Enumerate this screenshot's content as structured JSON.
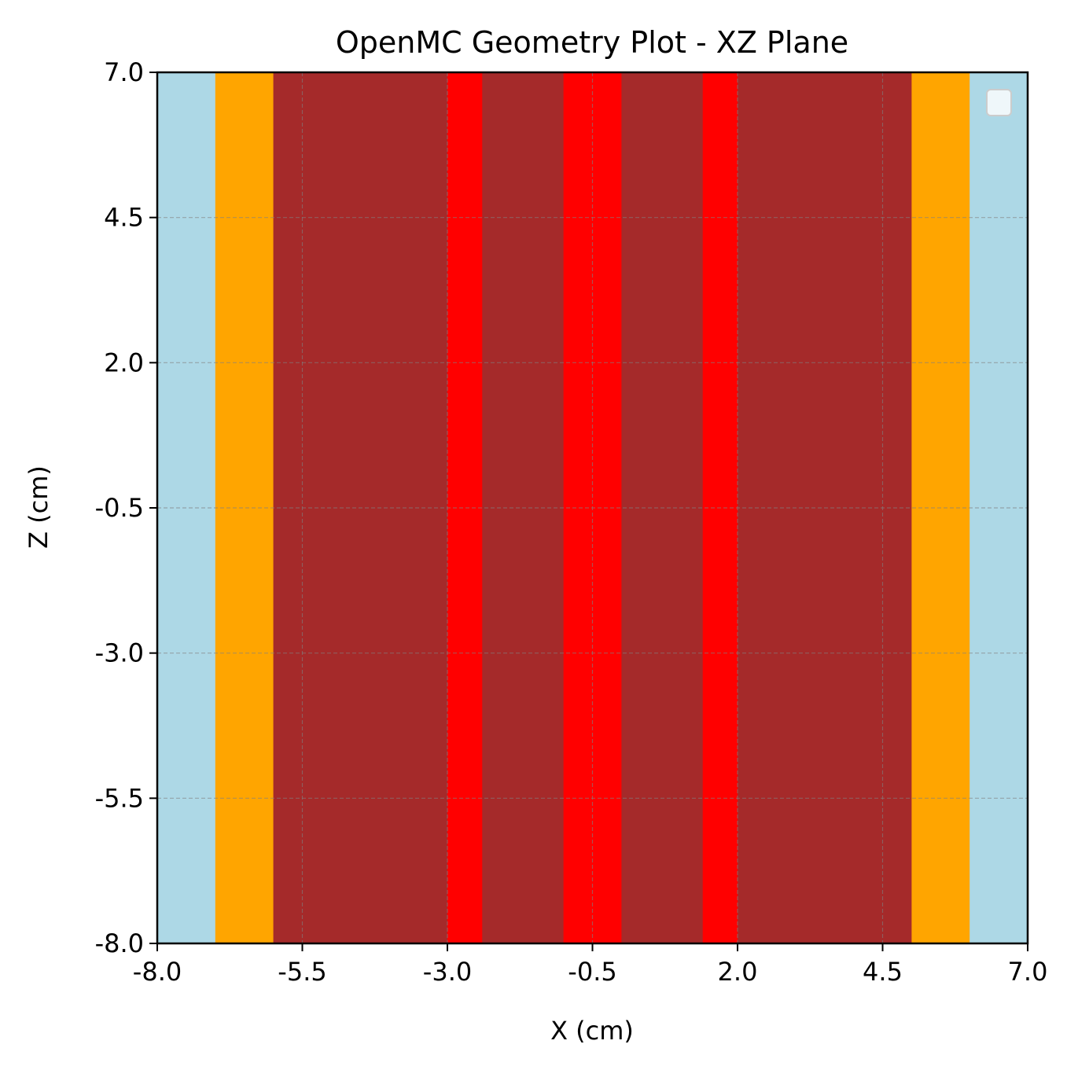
{
  "chart_data": {
    "type": "heatmap",
    "title": "OpenMC Geometry Plot - XZ Plane",
    "xlabel": "X (cm)",
    "ylabel": "Z (cm)",
    "xlim": [
      -8.0,
      7.0
    ],
    "ylim": [
      -8.0,
      7.0
    ],
    "xticks": [
      -8.0,
      -5.5,
      -3.0,
      -0.5,
      2.0,
      4.5,
      7.0
    ],
    "yticks": [
      -8.0,
      -5.5,
      -3.0,
      -0.5,
      2.0,
      4.5,
      7.0
    ],
    "xtick_labels": [
      "-8.0",
      "-5.5",
      "-3.0",
      "-0.5",
      "2.0",
      "4.5",
      "7.0"
    ],
    "ytick_labels": [
      "-8.0",
      "-5.5",
      "-3.0",
      "-0.5",
      "2.0",
      "4.5",
      "7.0"
    ],
    "grid": true,
    "legend": {
      "placement": "top-right",
      "entries": []
    },
    "regions": [
      {
        "x0": -8.0,
        "x1": -7.0,
        "color": "#add8e6"
      },
      {
        "x0": -7.0,
        "x1": -6.0,
        "color": "#ffa500"
      },
      {
        "x0": -6.0,
        "x1": -3.0,
        "color": "#a52a2a"
      },
      {
        "x0": -3.0,
        "x1": -2.4,
        "color": "#ff0000"
      },
      {
        "x0": -2.4,
        "x1": -1.0,
        "color": "#a52a2a"
      },
      {
        "x0": -1.0,
        "x1": 0.0,
        "color": "#ff0000"
      },
      {
        "x0": 0.0,
        "x1": 1.4,
        "color": "#a52a2a"
      },
      {
        "x0": 1.4,
        "x1": 2.0,
        "color": "#ff0000"
      },
      {
        "x0": 2.0,
        "x1": 5.0,
        "color": "#a52a2a"
      },
      {
        "x0": 5.0,
        "x1": 6.0,
        "color": "#ffa500"
      },
      {
        "x0": 6.0,
        "x1": 7.0,
        "color": "#add8e6"
      }
    ]
  }
}
